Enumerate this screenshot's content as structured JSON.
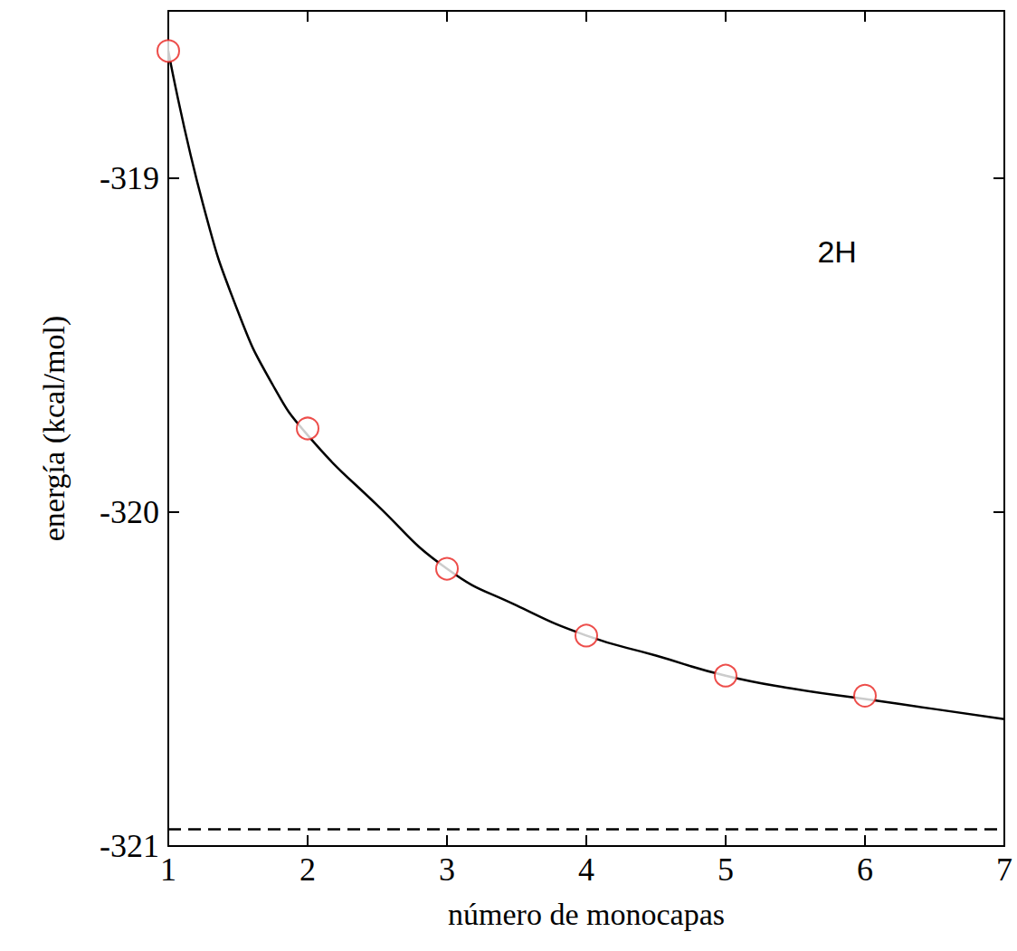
{
  "chart_data": {
    "type": "line",
    "x_label": "número de monocapas",
    "y_label": "energía (kcal/mol)",
    "xlim": [
      1,
      7
    ],
    "xticks": [
      1,
      2,
      3,
      4,
      5,
      6,
      7
    ],
    "ylim": [
      -321,
      -318.5
    ],
    "yticks": [
      -321,
      -320,
      -319
    ],
    "grid": false,
    "series": [
      {
        "type": "scatter",
        "color": "#e8221e",
        "marker": "circle_open",
        "x": [
          1,
          2,
          3,
          4,
          5,
          6
        ],
        "values": [
          -318.62,
          -319.75,
          -320.17,
          -320.37,
          -320.49,
          -320.55
        ]
      },
      {
        "type": "line",
        "color": "#000000",
        "marker": "none",
        "line_style": "solid",
        "x": [
          1,
          1.25,
          1.5,
          1.75,
          2,
          2.5,
          3,
          3.5,
          4,
          4.5,
          5,
          5.5,
          6,
          6.5,
          7
        ],
        "values": [
          -318.62,
          -319.08,
          -319.4,
          -319.62,
          -319.77,
          -319.98,
          -320.17,
          -320.28,
          -320.37,
          -320.43,
          -320.49,
          -320.53,
          -320.56,
          -320.59,
          -320.62
        ]
      }
    ],
    "reference_line": {
      "y": -320.95,
      "color": "#000000",
      "line_style": "dashed"
    },
    "annotations": [
      {
        "text": "2H",
        "x": 5.8,
        "y": -319.22
      }
    ]
  }
}
